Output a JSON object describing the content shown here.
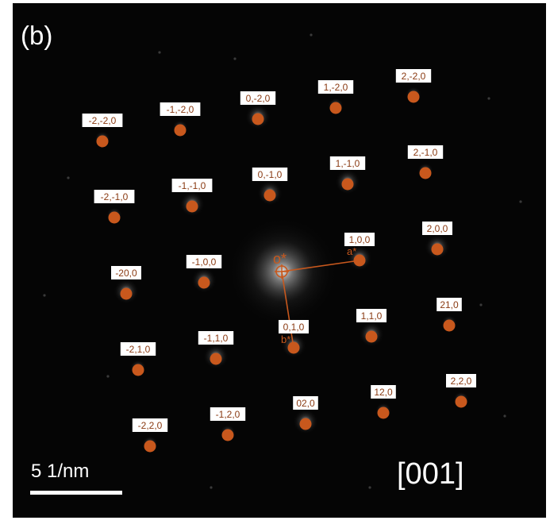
{
  "panel_label": "(b)",
  "zone_axis": "[001]",
  "scale_bar": {
    "label": "5 1/nm"
  },
  "origin_label": "o*",
  "vector_labels": {
    "a": "a*",
    "b": "b*"
  },
  "colors": {
    "background": "#050505",
    "marker": "#c8581d",
    "label_box": "#ffffff",
    "label_text": "#8a3a12",
    "overlay_text": "#ffffff"
  },
  "reflections": [
    {
      "label": "-2,-2,0",
      "h": -2,
      "k": -2
    },
    {
      "label": "-1,-2,0",
      "h": -1,
      "k": -2
    },
    {
      "label": "0,-2,0",
      "h": 0,
      "k": -2
    },
    {
      "label": "1,-2,0",
      "h": 1,
      "k": -2
    },
    {
      "label": "2,-2,0",
      "h": 2,
      "k": -2
    },
    {
      "label": "-2,-1,0",
      "h": -2,
      "k": -1
    },
    {
      "label": "-1,-1,0",
      "h": -1,
      "k": -1
    },
    {
      "label": "0,-1,0",
      "h": 0,
      "k": -1
    },
    {
      "label": "1,-1,0",
      "h": 1,
      "k": -1
    },
    {
      "label": "2,-1,0",
      "h": 2,
      "k": -1
    },
    {
      "label": "-20,0",
      "h": -2,
      "k": 0
    },
    {
      "label": "-1,0,0",
      "h": -1,
      "k": 0
    },
    {
      "label": "1,0,0",
      "h": 1,
      "k": 0
    },
    {
      "label": "2,0,0",
      "h": 2,
      "k": 0
    },
    {
      "label": "-2,1,0",
      "h": -2,
      "k": 1
    },
    {
      "label": "-1,1,0",
      "h": -1,
      "k": 1
    },
    {
      "label": "0,1,0",
      "h": 0,
      "k": 1
    },
    {
      "label": "1,1,0",
      "h": 1,
      "k": 1
    },
    {
      "label": "21,0",
      "h": 2,
      "k": 1
    },
    {
      "label": "-2,2,0",
      "h": -2,
      "k": 2
    },
    {
      "label": "-1,2,0",
      "h": -1,
      "k": 2
    },
    {
      "label": "02,0",
      "h": 0,
      "k": 2
    },
    {
      "label": "12,0",
      "h": 1,
      "k": 2
    },
    {
      "label": "2,2,0",
      "h": 2,
      "k": 2
    }
  ]
}
